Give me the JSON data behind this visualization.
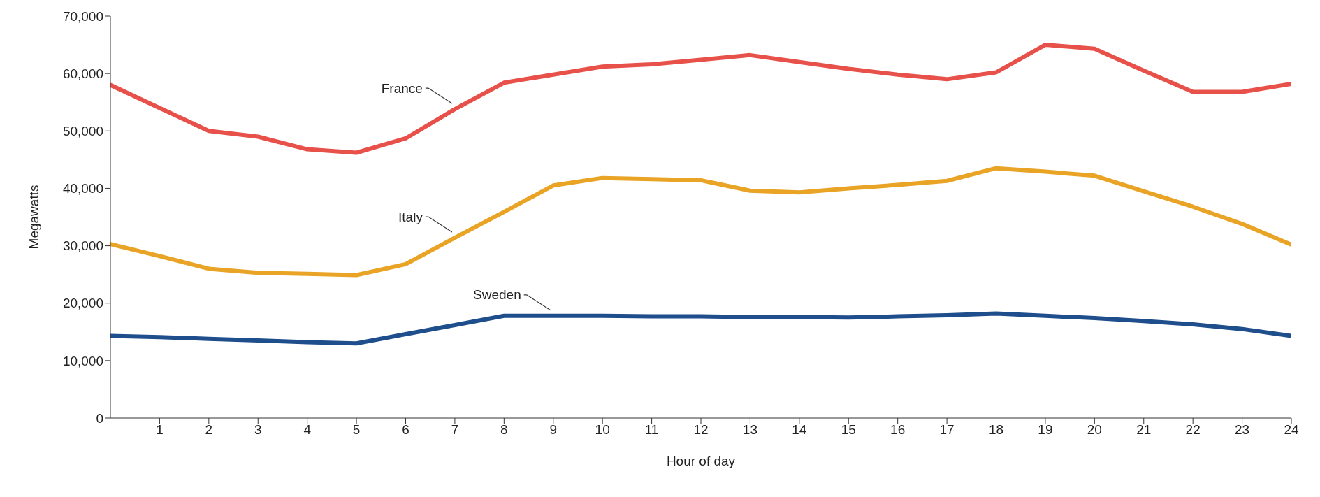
{
  "chart_data": {
    "type": "line",
    "xlabel": "Hour of day",
    "ylabel": "Megawatts",
    "x": [
      0,
      1,
      2,
      3,
      4,
      5,
      6,
      7,
      8,
      9,
      10,
      11,
      12,
      13,
      14,
      15,
      16,
      17,
      18,
      19,
      20,
      21,
      22,
      23,
      24
    ],
    "series": [
      {
        "name": "France",
        "color": "#e8504a",
        "values": [
          58000,
          54000,
          50000,
          49000,
          46800,
          46200,
          48700,
          53800,
          58400,
          59800,
          61200,
          61600,
          62400,
          63200,
          62000,
          60800,
          59800,
          59000,
          60200,
          65000,
          64300,
          60500,
          56800,
          56800,
          58200
        ]
      },
      {
        "name": "Italy",
        "color": "#e9a325",
        "values": [
          30300,
          28200,
          26000,
          25300,
          25100,
          24900,
          26800,
          31400,
          35900,
          40500,
          41800,
          41600,
          41400,
          39600,
          39300,
          40000,
          40600,
          41300,
          43500,
          42900,
          42200,
          39500,
          36800,
          33800,
          30200
        ]
      },
      {
        "name": "Sweden",
        "color": "#1f4e8c",
        "values": [
          14300,
          14100,
          13800,
          13500,
          13200,
          13000,
          14600,
          16200,
          17800,
          17800,
          17800,
          17700,
          17700,
          17600,
          17600,
          17500,
          17700,
          17900,
          18200,
          17800,
          17400,
          16900,
          16300,
          15500,
          14300
        ]
      }
    ],
    "xlim": [
      0,
      24
    ],
    "xticks": [
      1,
      2,
      3,
      4,
      5,
      6,
      7,
      8,
      9,
      10,
      11,
      12,
      13,
      14,
      15,
      16,
      17,
      18,
      19,
      20,
      21,
      22,
      23,
      24
    ],
    "ylim": [
      0,
      70000
    ],
    "yticks": [
      0,
      {
        "value": 10000,
        "label": "10,000"
      },
      {
        "value": 20000,
        "label": "20,000"
      },
      {
        "value": 30000,
        "label": "30,000"
      },
      {
        "value": 40000,
        "label": "40,000"
      },
      {
        "value": 50000,
        "label": "50,000"
      },
      {
        "value": 60000,
        "label": "60,000"
      },
      {
        "value": 70000,
        "label": "70,000"
      }
    ],
    "grid": false,
    "legend": false,
    "marker": "none",
    "line_style": "solid"
  }
}
